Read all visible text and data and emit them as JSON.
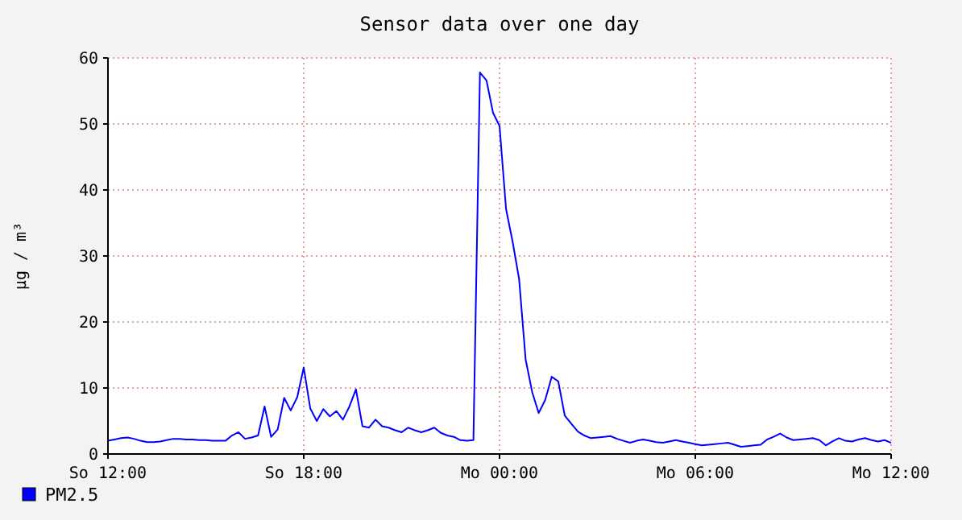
{
  "chart_data": {
    "type": "line",
    "title": "Sensor data over one day",
    "ylabel": "µg / m³",
    "categories": [
      "So 12:00",
      null,
      null,
      null,
      null,
      null,
      null,
      null,
      null,
      null,
      null,
      null,
      null,
      null,
      null,
      null,
      null,
      null,
      null,
      null,
      null,
      null,
      null,
      null,
      null,
      null,
      null,
      null,
      null,
      null,
      "So 18:00",
      null,
      null,
      null,
      null,
      null,
      null,
      null,
      null,
      null,
      null,
      null,
      null,
      null,
      null,
      null,
      null,
      null,
      null,
      null,
      null,
      null,
      null,
      null,
      null,
      null,
      null,
      null,
      null,
      null,
      "Mo 00:00",
      null,
      null,
      null,
      null,
      null,
      null,
      null,
      null,
      null,
      null,
      null,
      null,
      null,
      null,
      null,
      null,
      null,
      null,
      null,
      null,
      null,
      null,
      null,
      null,
      null,
      null,
      null,
      null,
      null,
      "Mo 06:00",
      null,
      null,
      null,
      null,
      null,
      null,
      null,
      null,
      null,
      null,
      null,
      null,
      null,
      null,
      null,
      null,
      null,
      null,
      null,
      null,
      null,
      null,
      null,
      null,
      null,
      null,
      null,
      null,
      null,
      "Mo 12:00"
    ],
    "ylim": [
      0,
      60
    ],
    "yticks": [
      0,
      10,
      20,
      30,
      40,
      50,
      60
    ],
    "grid": true,
    "legend": "bottom left",
    "marker": "none",
    "line_style": "solid",
    "series": [
      {
        "name": "PM2.5",
        "color": "#0000ff",
        "values": [
          2.0,
          2.2,
          2.4,
          2.5,
          2.3,
          2.0,
          1.8,
          1.8,
          1.9,
          2.1,
          2.3,
          2.3,
          2.2,
          2.2,
          2.1,
          2.1,
          2.0,
          2.0,
          2.0,
          2.8,
          3.3,
          2.3,
          2.5,
          2.8,
          7.2,
          2.6,
          3.7,
          8.5,
          6.6,
          8.6,
          13.1,
          6.9,
          5.0,
          6.8,
          5.7,
          6.5,
          5.2,
          7.2,
          9.8,
          4.2,
          4.0,
          5.2,
          4.2,
          4.0,
          3.6,
          3.3,
          4.0,
          3.6,
          3.3,
          3.6,
          4.0,
          3.2,
          2.8,
          2.6,
          2.1,
          2.0,
          2.1,
          57.8,
          56.6,
          51.7,
          49.7,
          37.1,
          32.2,
          26.5,
          14.3,
          9.4,
          6.2,
          8.2,
          11.7,
          11.0,
          5.8,
          4.6,
          3.4,
          2.8,
          2.4,
          2.5,
          2.6,
          2.7,
          2.3,
          2.0,
          1.7,
          2.0,
          2.2,
          2.0,
          1.8,
          1.7,
          1.9,
          2.1,
          1.9,
          1.7,
          1.5,
          1.3,
          1.4,
          1.5,
          1.6,
          1.7,
          1.4,
          1.1,
          1.2,
          1.3,
          1.4,
          2.2,
          2.6,
          3.1,
          2.5,
          2.1,
          2.2,
          2.3,
          2.4,
          2.1,
          1.3,
          1.9,
          2.4,
          2.0,
          1.9,
          2.2,
          2.4,
          2.1,
          1.9,
          2.1,
          1.7
        ]
      }
    ]
  }
}
